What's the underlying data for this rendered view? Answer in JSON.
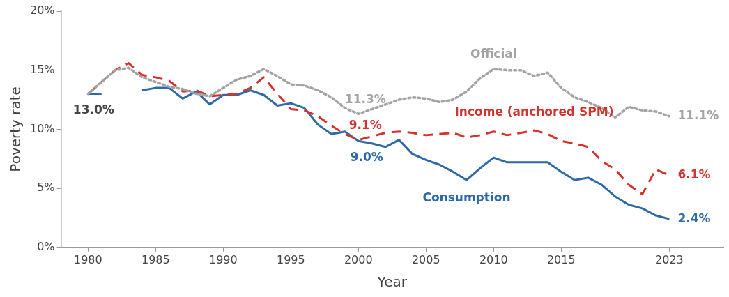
{
  "chart_data": {
    "type": "line",
    "xlabel": "Year",
    "ylabel": "Poverty rate",
    "x": [
      1980,
      1981,
      1982,
      1983,
      1984,
      1985,
      1986,
      1987,
      1988,
      1989,
      1990,
      1991,
      1992,
      1993,
      1994,
      1995,
      1996,
      1997,
      1998,
      1999,
      2000,
      2001,
      2002,
      2003,
      2004,
      2005,
      2006,
      2007,
      2008,
      2009,
      2010,
      2011,
      2012,
      2013,
      2014,
      2015,
      2016,
      2017,
      2018,
      2019,
      2020,
      2021,
      2022,
      2023
    ],
    "series": [
      {
        "name": "Official",
        "color": "#a3a3a3",
        "line_style": "dotted",
        "values": [
          13.0,
          14.0,
          15.0,
          15.2,
          14.4,
          14.0,
          13.6,
          13.4,
          13.0,
          12.8,
          13.5,
          14.2,
          14.5,
          15.1,
          14.5,
          13.8,
          13.7,
          13.3,
          12.7,
          11.8,
          11.3,
          11.7,
          12.1,
          12.5,
          12.7,
          12.6,
          12.3,
          12.5,
          13.2,
          14.3,
          15.1,
          15.0,
          15.0,
          14.5,
          14.8,
          13.5,
          12.7,
          12.3,
          11.8,
          11.0,
          11.9,
          11.6,
          11.5,
          11.1
        ]
      },
      {
        "name": "Income (anchored SPM)",
        "color": "#d2332f",
        "line_style": "dashed",
        "values": [
          13.0,
          14.0,
          15.0,
          15.6,
          14.6,
          14.4,
          14.1,
          13.2,
          13.3,
          12.8,
          12.9,
          13.0,
          13.5,
          14.4,
          13.0,
          11.7,
          11.6,
          11.1,
          10.3,
          9.6,
          9.1,
          9.4,
          9.7,
          9.8,
          9.7,
          9.5,
          9.6,
          9.7,
          9.3,
          9.5,
          9.8,
          9.5,
          9.7,
          9.9,
          9.6,
          9.0,
          8.8,
          8.5,
          7.3,
          6.6,
          5.3,
          4.5,
          6.6,
          6.1
        ]
      },
      {
        "name": "Consumption",
        "color": "#2f6aa8",
        "line_style": "solid",
        "values": [
          13.0,
          13.0,
          null,
          null,
          13.3,
          13.5,
          13.5,
          12.6,
          13.2,
          12.1,
          12.9,
          12.9,
          13.3,
          12.9,
          12.0,
          12.2,
          11.8,
          10.4,
          9.6,
          9.8,
          9.0,
          8.8,
          8.5,
          9.1,
          7.9,
          7.4,
          7.0,
          6.4,
          5.7,
          6.7,
          7.6,
          7.2,
          7.2,
          7.2,
          7.2,
          6.4,
          5.7,
          5.9,
          5.3,
          4.3,
          3.6,
          3.3,
          2.7,
          2.4
        ]
      }
    ],
    "xlim": [
      1978,
      2027
    ],
    "xticks": [
      1980,
      1985,
      1990,
      1995,
      2000,
      2005,
      2010,
      2015,
      2023
    ],
    "ylim": [
      0,
      20
    ],
    "yticks": [
      {
        "value": 0,
        "label": "0%"
      },
      {
        "value": 5,
        "label": "5%"
      },
      {
        "value": 10,
        "label": "10%"
      },
      {
        "value": 15,
        "label": "15%"
      },
      {
        "value": 20,
        "label": "20%"
      }
    ],
    "grid": false,
    "legend": false,
    "marker": "none",
    "annotations": [
      {
        "text": "13.0%",
        "x": 1980,
        "y": 13.0
      },
      {
        "text": "11.3%",
        "x": 2000,
        "y": 11.3
      },
      {
        "text": "9.1%",
        "x": 2000,
        "y": 9.1
      },
      {
        "text": "9.0%",
        "x": 2000,
        "y": 9.0
      },
      {
        "text": "11.1%",
        "x": 2023,
        "y": 11.1
      },
      {
        "text": "6.1%",
        "x": 2023,
        "y": 6.1
      },
      {
        "text": "2.4%",
        "x": 2023,
        "y": 2.4
      }
    ]
  }
}
